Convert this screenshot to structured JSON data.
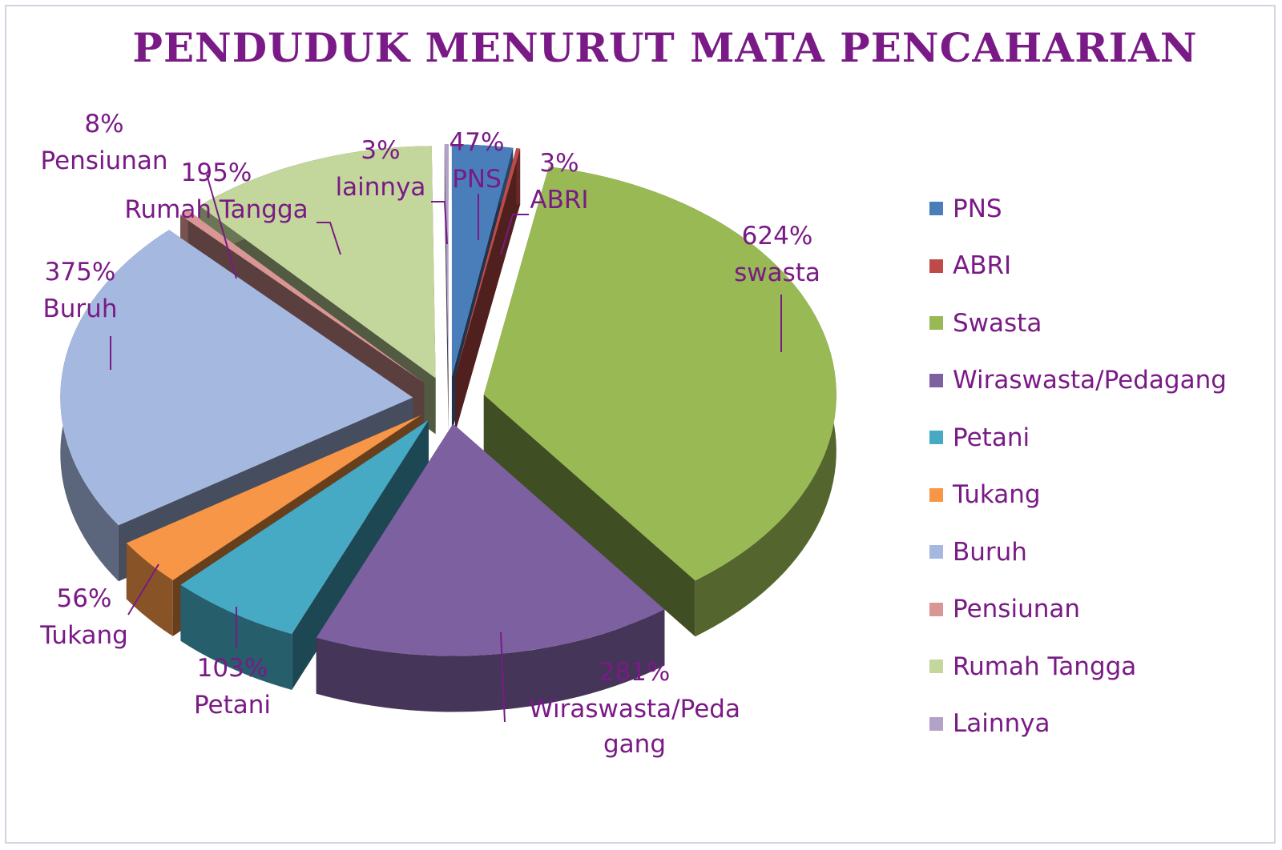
{
  "chart_data": {
    "type": "pie",
    "title": "PENDUDUK MENURUT MATA PENCAHARIAN",
    "legend_position": "right",
    "slices": [
      {
        "legend": "PNS",
        "value": 47,
        "label_value": "47%",
        "label_name": "PNS",
        "color": "#4a7ebb"
      },
      {
        "legend": "ABRI",
        "value": 3,
        "label_value": "3%",
        "label_name": "ABRI",
        "color": "#be4b48"
      },
      {
        "legend": "Swasta",
        "value": 624,
        "label_value": "624%",
        "label_name": "swasta",
        "color": "#98b954"
      },
      {
        "legend": "Wiraswasta/Pedagang",
        "value": 281,
        "label_value": "281%",
        "label_name": "Wiraswasta/Peda",
        "label_name_2": "gang",
        "color": "#7d60a0"
      },
      {
        "legend": "Petani",
        "value": 103,
        "label_value": "103%",
        "label_name": "Petani",
        "color": "#46aac5"
      },
      {
        "legend": "Tukang",
        "value": 56,
        "label_value": "56%",
        "label_name": "Tukang",
        "color": "#f79646"
      },
      {
        "legend": "Buruh",
        "value": 375,
        "label_value": "375%",
        "label_name": "Buruh",
        "color": "#a5b8df"
      },
      {
        "legend": "Pensiunan",
        "value": 8,
        "label_value": "8%",
        "label_name": "Pensiunan",
        "color": "#d99694"
      },
      {
        "legend": "Rumah Tangga",
        "value": 195,
        "label_value": "195%",
        "label_name": "Rumah Tangga",
        "color": "#c3d69b"
      },
      {
        "legend": "Lainnya",
        "value": 3,
        "label_value": "3%",
        "label_name": "lainnya",
        "color": "#b3a2c7"
      }
    ]
  }
}
